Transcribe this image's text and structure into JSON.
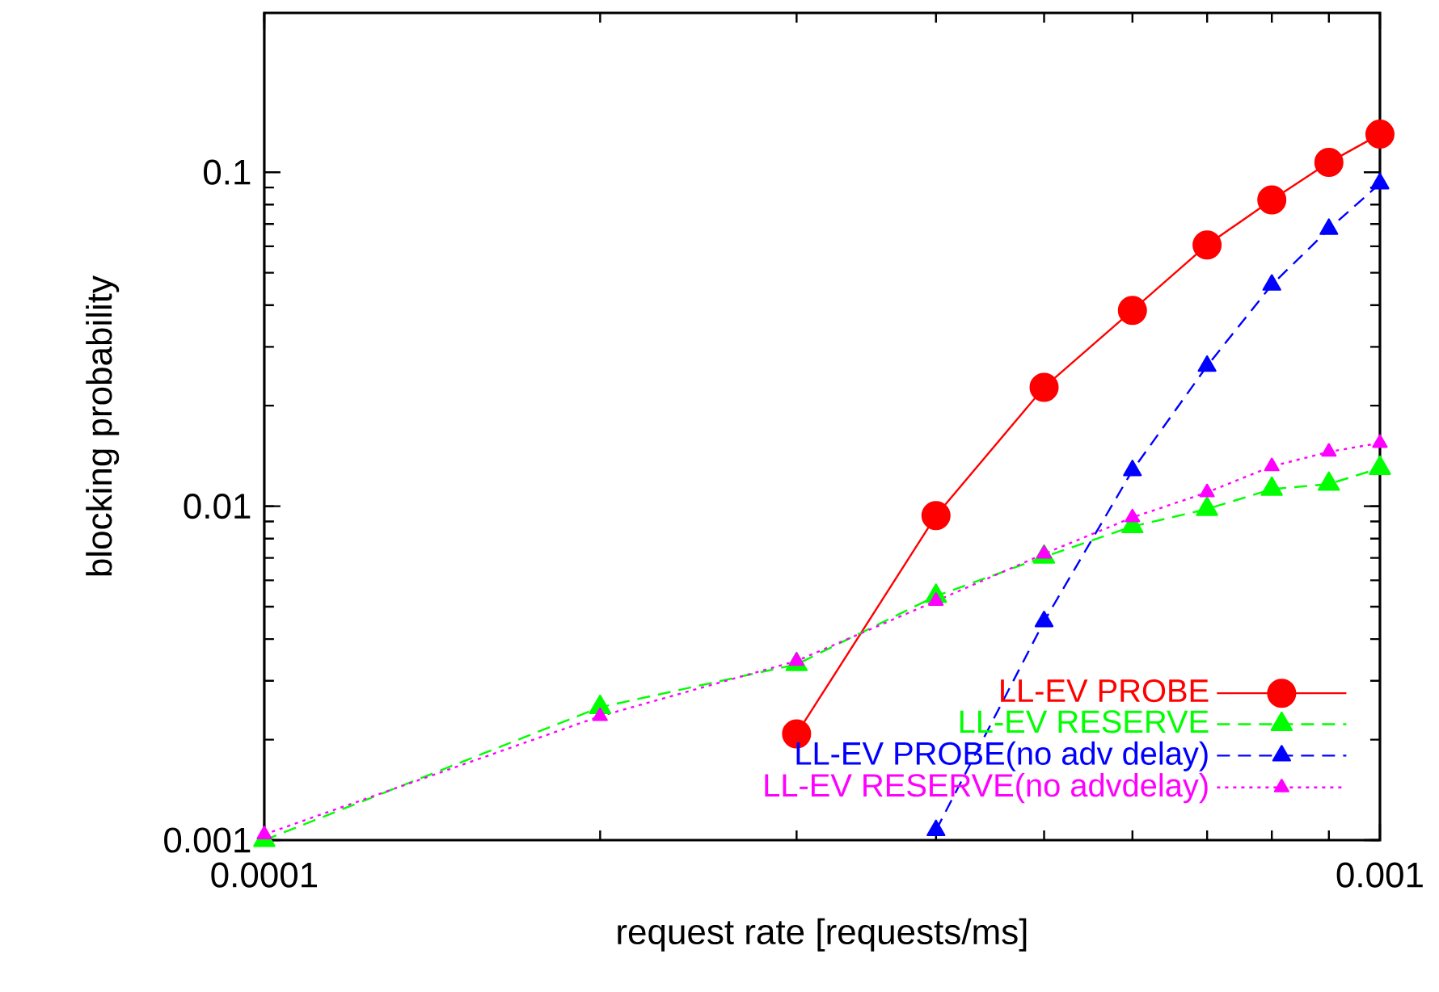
{
  "chart_data": {
    "type": "line",
    "xlabel": "request rate [requests/ms]",
    "ylabel": "blocking probability",
    "log": "xy",
    "xlim": [
      0.0001,
      0.001
    ],
    "xticks": [
      0.0001,
      0.001
    ],
    "ylim": [
      0.001,
      0.3
    ],
    "yticks": [
      0.001,
      0.01,
      0.1
    ],
    "legend": "bottom right",
    "grid": false,
    "series": [
      {
        "name": "LL-EV PROBE",
        "color": "#ff0000",
        "marker": "circle",
        "line_style": "solid",
        "x": [
          0.0003,
          0.0004,
          0.0005,
          0.0006,
          0.0007,
          0.0008,
          0.0009,
          0.001
        ],
        "values": [
          0.00208,
          0.00937,
          0.0227,
          0.0386,
          0.0606,
          0.0826,
          0.107,
          0.13
        ]
      },
      {
        "name": "LL-EV RESERVE",
        "color": "#00ff00",
        "marker": "triangle",
        "line_style": "dashed",
        "x": [
          0.0001,
          0.0002,
          0.0003,
          0.0004,
          0.0005,
          0.0006,
          0.0007,
          0.0008,
          0.0009,
          0.001
        ],
        "values": [
          0.001,
          0.0025,
          0.00336,
          0.00538,
          0.00705,
          0.0087,
          0.0098,
          0.01125,
          0.01165,
          0.013
        ]
      },
      {
        "name": "LL-EV PROBE(no adv delay)",
        "color": "#0000ff",
        "marker": "triangle",
        "line_style": "dashed",
        "x": [
          0.0004,
          0.0005,
          0.0006,
          0.0007,
          0.0008,
          0.0009,
          0.001
        ],
        "values": [
          0.00107,
          0.00452,
          0.0128,
          0.0263,
          0.046,
          0.0676,
          0.0925
        ]
      },
      {
        "name": "LL-EV RESERVE(no advdelay)",
        "color": "#ff00ff",
        "marker": "triangle",
        "line_style": "dotted",
        "x": [
          0.0001,
          0.0002,
          0.0003,
          0.0004,
          0.0005,
          0.0006,
          0.0007,
          0.0008,
          0.0009,
          0.001
        ],
        "values": [
          0.00104,
          0.00235,
          0.00344,
          0.0052,
          0.0072,
          0.00925,
          0.011,
          0.01316,
          0.01455,
          0.01546
        ]
      }
    ]
  }
}
